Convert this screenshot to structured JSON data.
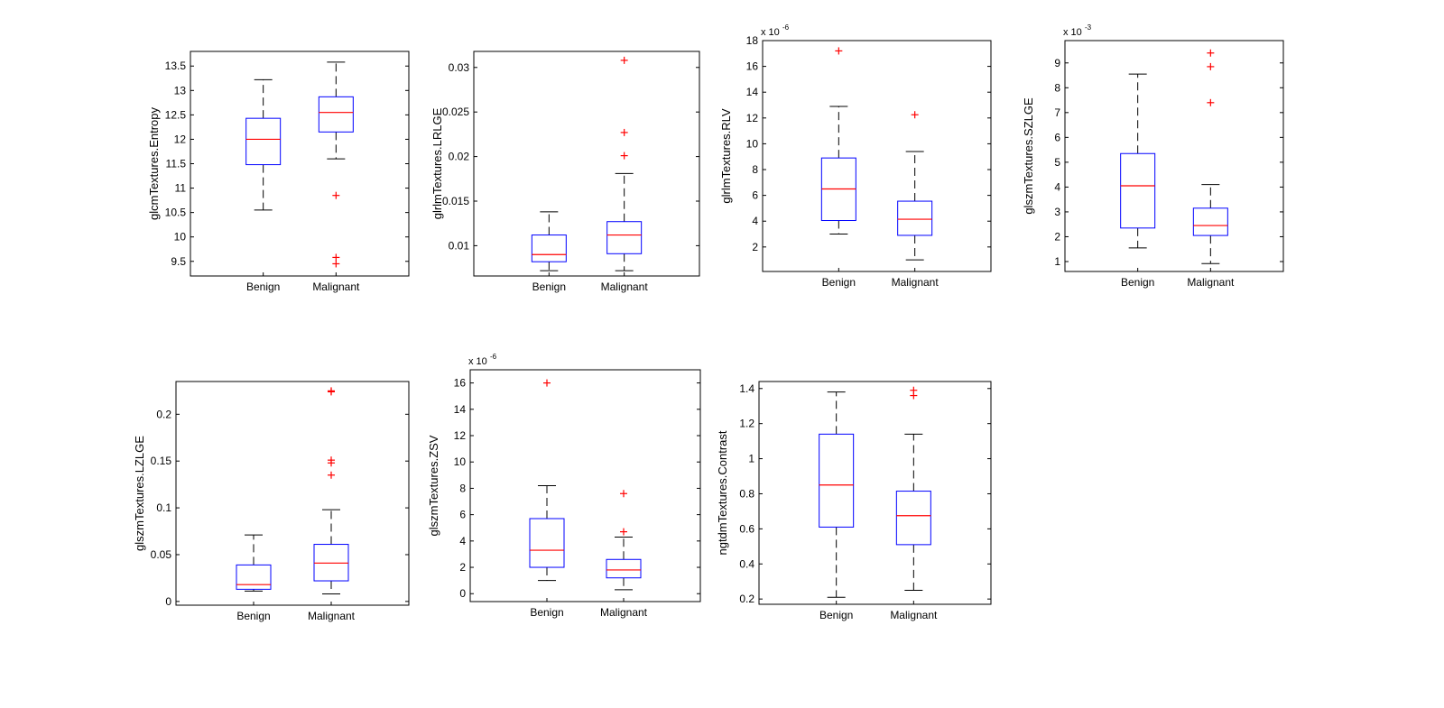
{
  "colors": {
    "box": "#0000ff",
    "median": "#ff0000",
    "outlier": "#ff0000",
    "whisker": "#000000",
    "axes": "#000000",
    "background": "#ffffff"
  },
  "chart_data": [
    {
      "type": "boxplot",
      "ylabel": "glcmTextures.Entropy",
      "categories": [
        "Benign",
        "Malignant"
      ],
      "ylim": [
        9.2,
        13.8
      ],
      "yticks": [
        9.5,
        10,
        10.5,
        11,
        11.5,
        12,
        12.5,
        13,
        13.5
      ],
      "ytick_labels": [
        "9.5",
        "10",
        "10.5",
        "11",
        "11.5",
        "12",
        "12.5",
        "13",
        "13.5"
      ],
      "exponent_label": "",
      "boxes": [
        {
          "whisker_low": 10.55,
          "q1": 11.48,
          "median": 12.0,
          "q3": 12.43,
          "whisker_high": 13.22,
          "outliers": []
        },
        {
          "whisker_low": 11.6,
          "q1": 12.15,
          "median": 12.55,
          "q3": 12.87,
          "whisker_high": 13.58,
          "outliers": [
            10.85,
            9.58,
            9.45
          ]
        }
      ]
    },
    {
      "type": "boxplot",
      "ylabel": "glrlmTextures.LRLGE",
      "categories": [
        "Benign",
        "Malignant"
      ],
      "ylim": [
        0.0066,
        0.0318
      ],
      "yticks": [
        0.01,
        0.015,
        0.02,
        0.025,
        0.03
      ],
      "ytick_labels": [
        "0.01",
        "0.015",
        "0.02",
        "0.025",
        "0.03"
      ],
      "exponent_label": "",
      "boxes": [
        {
          "whisker_low": 0.0072,
          "q1": 0.0082,
          "median": 0.009,
          "q3": 0.0112,
          "whisker_high": 0.0138,
          "outliers": []
        },
        {
          "whisker_low": 0.0072,
          "q1": 0.0091,
          "median": 0.0112,
          "q3": 0.0127,
          "whisker_high": 0.0181,
          "outliers": [
            0.0201,
            0.0227,
            0.0308
          ]
        }
      ]
    },
    {
      "type": "boxplot",
      "ylabel": "glrlmTextures.RLV",
      "categories": [
        "Benign",
        "Malignant"
      ],
      "ylim": [
        0.1,
        18
      ],
      "yticks": [
        2,
        4,
        6,
        8,
        10,
        12,
        14,
        16,
        18
      ],
      "ytick_labels": [
        "2",
        "4",
        "6",
        "8",
        "10",
        "12",
        "14",
        "16",
        "18"
      ],
      "exponent_label": "x 10",
      "exponent": "-6",
      "boxes": [
        {
          "whisker_low": 3.0,
          "q1": 4.05,
          "median": 6.5,
          "q3": 8.9,
          "whisker_high": 12.9,
          "outliers": [
            17.2
          ]
        },
        {
          "whisker_low": 1.0,
          "q1": 2.9,
          "median": 4.15,
          "q3": 5.55,
          "whisker_high": 9.4,
          "outliers": [
            12.25
          ]
        }
      ]
    },
    {
      "type": "boxplot",
      "ylabel": "glszmTextures.SZLGE",
      "categories": [
        "Benign",
        "Malignant"
      ],
      "ylim": [
        0.6,
        9.9
      ],
      "yticks": [
        1,
        2,
        3,
        4,
        5,
        6,
        7,
        8,
        9
      ],
      "ytick_labels": [
        "1",
        "2",
        "3",
        "4",
        "5",
        "6",
        "7",
        "8",
        "9"
      ],
      "exponent_label": "x 10",
      "exponent": "-3",
      "boxes": [
        {
          "whisker_low": 1.55,
          "q1": 2.35,
          "median": 4.05,
          "q3": 5.35,
          "whisker_high": 8.55,
          "outliers": []
        },
        {
          "whisker_low": 0.92,
          "q1": 2.05,
          "median": 2.45,
          "q3": 3.15,
          "whisker_high": 4.1,
          "outliers": [
            7.4,
            8.85,
            9.4
          ]
        }
      ]
    },
    {
      "type": "boxplot",
      "ylabel": "glszmTextures.LZLGE",
      "categories": [
        "Benign",
        "Malignant"
      ],
      "ylim": [
        -0.004,
        0.235
      ],
      "yticks": [
        0,
        0.05,
        0.1,
        0.15,
        0.2
      ],
      "ytick_labels": [
        "0",
        "0.05",
        "0.1",
        "0.15",
        "0.2"
      ],
      "exponent_label": "",
      "boxes": [
        {
          "whisker_low": 0.011,
          "q1": 0.013,
          "median": 0.018,
          "q3": 0.039,
          "whisker_high": 0.071,
          "outliers": []
        },
        {
          "whisker_low": 0.008,
          "q1": 0.022,
          "median": 0.041,
          "q3": 0.061,
          "whisker_high": 0.098,
          "outliers": [
            0.135,
            0.148,
            0.151,
            0.224,
            0.225
          ]
        }
      ]
    },
    {
      "type": "boxplot",
      "ylabel": "glszmTextures.ZSV",
      "categories": [
        "Benign",
        "Malignant"
      ],
      "ylim": [
        -0.6,
        17
      ],
      "yticks": [
        0,
        2,
        4,
        6,
        8,
        10,
        12,
        14,
        16
      ],
      "ytick_labels": [
        "0",
        "2",
        "4",
        "6",
        "8",
        "10",
        "12",
        "14",
        "16"
      ],
      "exponent_label": "x 10",
      "exponent": "-6",
      "boxes": [
        {
          "whisker_low": 1.0,
          "q1": 2.0,
          "median": 3.3,
          "q3": 5.7,
          "whisker_high": 8.2,
          "outliers": [
            16.0
          ]
        },
        {
          "whisker_low": 0.3,
          "q1": 1.2,
          "median": 1.8,
          "q3": 2.6,
          "whisker_high": 4.3,
          "outliers": [
            4.7,
            7.6
          ]
        }
      ]
    },
    {
      "type": "boxplot",
      "ylabel": "ngtdmTextures.Contrast",
      "categories": [
        "Benign",
        "Malignant"
      ],
      "ylim": [
        0.17,
        1.44
      ],
      "yticks": [
        0.2,
        0.4,
        0.6,
        0.8,
        1,
        1.2,
        1.4
      ],
      "ytick_labels": [
        "0.2",
        "0.4",
        "0.6",
        "0.8",
        "1",
        "1.2",
        "1.4"
      ],
      "exponent_label": "",
      "boxes": [
        {
          "whisker_low": 0.21,
          "q1": 0.61,
          "median": 0.85,
          "q3": 1.14,
          "whisker_high": 1.38,
          "outliers": []
        },
        {
          "whisker_low": 0.25,
          "q1": 0.51,
          "median": 0.675,
          "q3": 0.815,
          "whisker_high": 1.14,
          "outliers": [
            1.36,
            1.39
          ]
        }
      ]
    }
  ]
}
